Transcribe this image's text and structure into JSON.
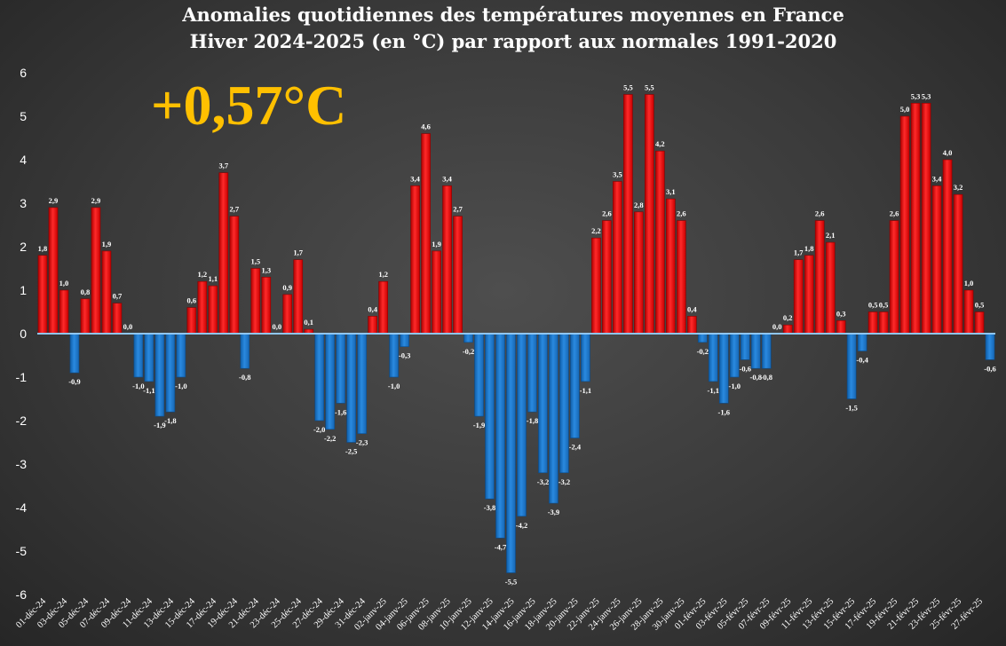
{
  "chart_data": {
    "type": "bar",
    "title": "Anomalies quotidiennes des températures moyennes en France",
    "subtitle": "Hiver 2024-2025 (en °C) par rapport aux normales 1991-2020",
    "annotation": "+0,57°C",
    "ylim": [
      -6,
      6
    ],
    "yticks": [
      "6",
      "5",
      "4",
      "3",
      "2",
      "1",
      "0",
      "-1",
      "-2",
      "-3",
      "-4",
      "-5",
      "-6"
    ],
    "grid": false,
    "legend": "none",
    "colors": {
      "positive": "#ff1a1a",
      "negative": "#1f7fd6",
      "annotation": "#ffc000",
      "text": "#ffffff"
    },
    "categories": [
      "01-déc-24",
      "02-déc-24",
      "03-déc-24",
      "04-déc-24",
      "05-déc-24",
      "06-déc-24",
      "07-déc-24",
      "08-déc-24",
      "09-déc-24",
      "10-déc-24",
      "11-déc-24",
      "12-déc-24",
      "13-déc-24",
      "14-déc-24",
      "15-déc-24",
      "16-déc-24",
      "17-déc-24",
      "18-déc-24",
      "19-déc-24",
      "20-déc-24",
      "21-déc-24",
      "22-déc-24",
      "23-déc-24",
      "24-déc-24",
      "25-déc-24",
      "26-déc-24",
      "27-déc-24",
      "28-déc-24",
      "29-déc-24",
      "30-déc-24",
      "31-déc-24",
      "01-janv-25",
      "02-janv-25",
      "03-janv-25",
      "04-janv-25",
      "05-janv-25",
      "06-janv-25",
      "07-janv-25",
      "08-janv-25",
      "09-janv-25",
      "10-janv-25",
      "11-janv-25",
      "12-janv-25",
      "13-janv-25",
      "14-janv-25",
      "15-janv-25",
      "16-janv-25",
      "17-janv-25",
      "18-janv-25",
      "19-janv-25",
      "20-janv-25",
      "21-janv-25",
      "22-janv-25",
      "23-janv-25",
      "24-janv-25",
      "25-janv-25",
      "26-janv-25",
      "27-janv-25",
      "28-janv-25",
      "29-janv-25",
      "30-janv-25",
      "31-janv-25",
      "01-févr-25",
      "02-févr-25",
      "03-févr-25",
      "04-févr-25",
      "05-févr-25",
      "06-févr-25",
      "07-févr-25",
      "08-févr-25",
      "09-févr-25",
      "10-févr-25",
      "11-févr-25",
      "12-févr-25",
      "13-févr-25",
      "14-févr-25",
      "15-févr-25",
      "16-févr-25",
      "17-févr-25",
      "18-févr-25",
      "19-févr-25",
      "20-févr-25",
      "21-févr-25",
      "22-févr-25",
      "23-févr-25",
      "24-févr-25",
      "25-févr-25",
      "26-févr-25",
      "27-févr-25",
      "28-févr-25"
    ],
    "values": [
      1.8,
      2.9,
      1.0,
      -0.9,
      0.8,
      2.9,
      1.9,
      0.7,
      0.0,
      -1.0,
      -1.1,
      -1.9,
      -1.8,
      -1.0,
      0.6,
      1.2,
      1.1,
      3.7,
      2.7,
      -0.8,
      1.5,
      1.3,
      0.0,
      0.9,
      1.7,
      0.1,
      -2.0,
      -2.2,
      -1.6,
      -2.5,
      -2.3,
      0.4,
      1.2,
      -1.0,
      -0.3,
      3.4,
      4.6,
      1.9,
      3.4,
      2.7,
      -0.2,
      -1.9,
      -3.8,
      -4.7,
      -5.5,
      -4.2,
      -1.8,
      -3.2,
      -3.9,
      -3.2,
      -2.4,
      -1.1,
      2.2,
      2.6,
      3.5,
      5.5,
      2.8,
      5.5,
      4.2,
      3.1,
      2.6,
      0.4,
      -0.2,
      -1.1,
      -1.6,
      -1.0,
      -0.6,
      -0.8,
      -0.8,
      0.0,
      0.2,
      1.7,
      1.8,
      2.6,
      2.1,
      0.3,
      -1.5,
      -0.4,
      0.5,
      0.5,
      2.6,
      5.0,
      5.3,
      5.3,
      3.4,
      4.0,
      3.2,
      1.0,
      0.5,
      -0.6
    ],
    "labels": [
      "1,8",
      "2,9",
      "1,0",
      "-0,9",
      "0,8",
      "2,9",
      "1,9",
      "0,7",
      "0,0",
      "-1,0",
      "-1,1",
      "-1,9",
      "-1,8",
      "-1,0",
      "0,6",
      "1,2",
      "1,1",
      "3,7",
      "2,7",
      "-0,8",
      "1,5",
      "1,3",
      "0,0",
      "0,9",
      "1,7",
      "0,1",
      "-2,0",
      "-2,2",
      "-1,6",
      "-2,5",
      "-2,3",
      "0,4",
      "1,2",
      "-1,0",
      "-0,3",
      "3,4",
      "4,6",
      "1,9",
      "3,4",
      "2,7",
      "-0,2",
      "-1,9",
      "-3,8",
      "-4,7",
      "-5,5",
      "-4,2",
      "-1,8",
      "-3,2",
      "-3,9",
      "-3,2",
      "-2,4",
      "-1,1",
      "2,2",
      "2,6",
      "3,5",
      "5,5",
      "2,8",
      "5,5",
      "4,2",
      "3,1",
      "2,6",
      "0,4",
      "-0,2",
      "-1,1",
      "-1,6",
      "-1,0",
      "-0,6",
      "-0,8",
      "-0,8",
      "0,0",
      "0,2",
      "1,7",
      "1,8",
      "2,6",
      "2,1",
      "0,3",
      "-1,5",
      "-0,4",
      "0,5",
      "0,5",
      "2,6",
      "5,0",
      "5,3",
      "5,3",
      "3,4",
      "4,0",
      "3,2",
      "1,0",
      "0,5",
      "-0,6"
    ]
  }
}
